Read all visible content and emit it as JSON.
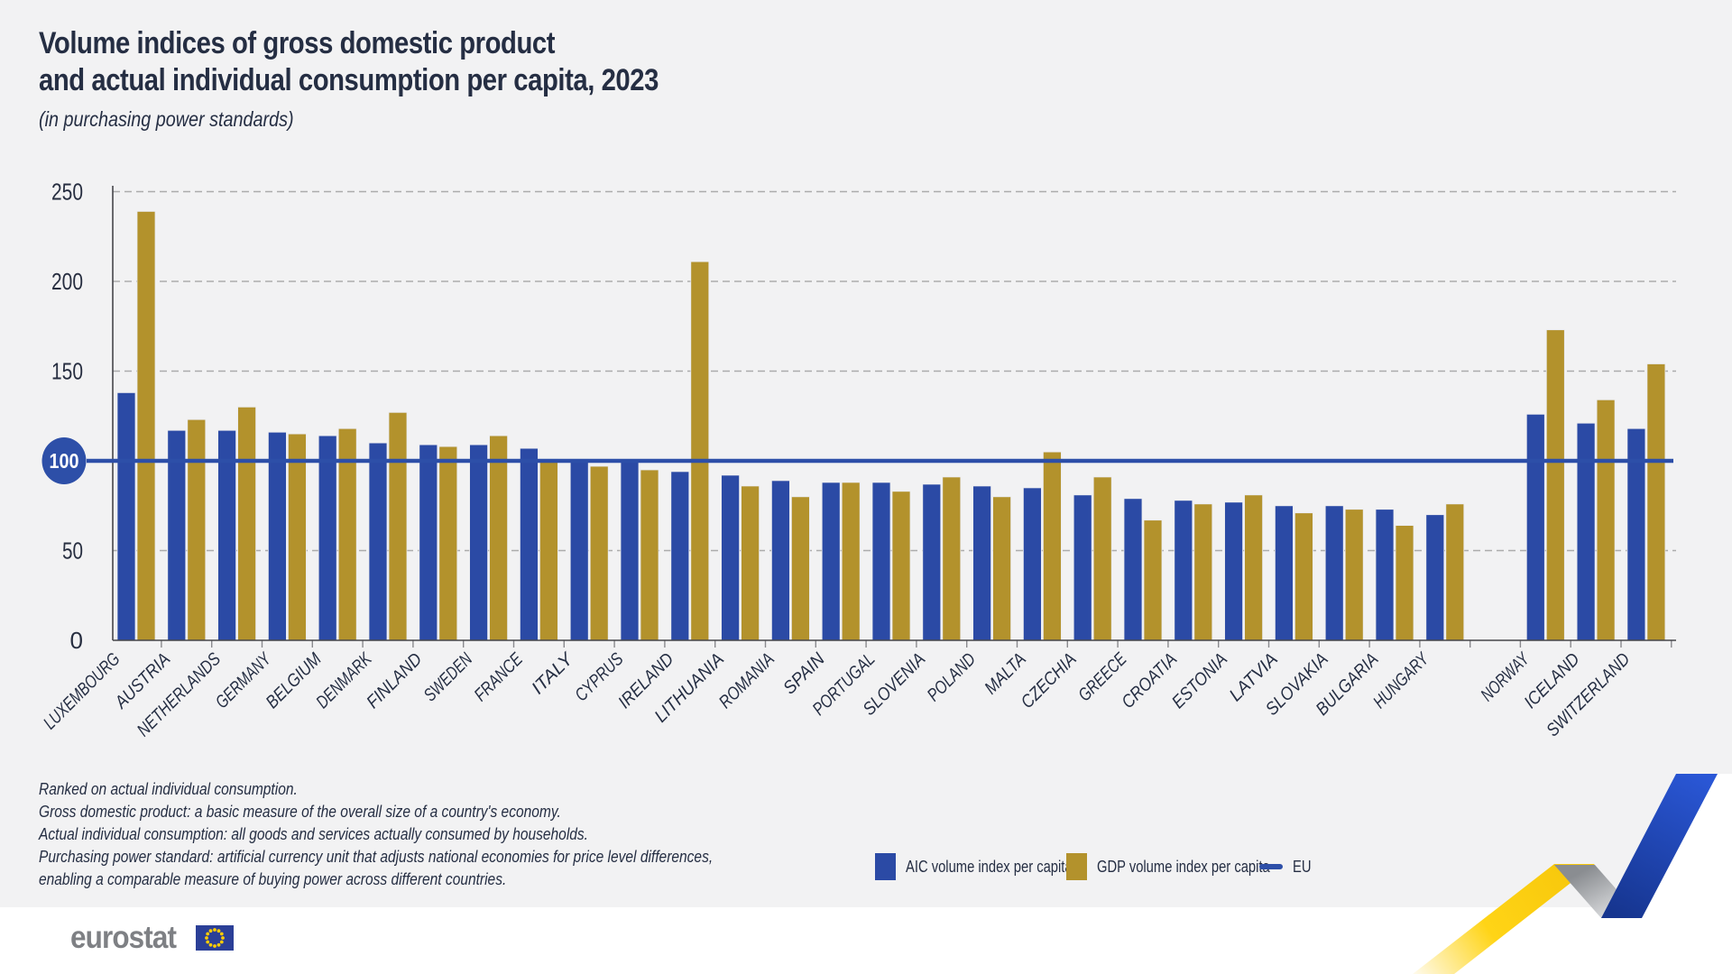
{
  "title": {
    "line1": "Volume indices of gross domestic product",
    "line2": "and actual individual consumption per capita, 2023",
    "subtitle": "(in purchasing power standards)"
  },
  "legend": {
    "items": [
      {
        "label": "AIC volume index per capita",
        "swatch": "square",
        "color": "#2B4AA5"
      },
      {
        "label": "GDP volume index per capita",
        "swatch": "square",
        "color": "#B3922C"
      },
      {
        "label": "EU",
        "swatch": "line",
        "color": "#2D4FA8"
      }
    ]
  },
  "footnotes": {
    "lines": [
      "Ranked on actual individual consumption.",
      "Gross domestic product: a basic measure of the overall size of a country's economy.",
      "Actual individual consumption: all goods and services actually consumed by households.",
      "Purchasing power standard: artificial currency unit that adjusts national economies for price level differences,",
      "enabling a comparable measure of buying power across different countries."
    ]
  },
  "logo": {
    "text": "eurostat"
  },
  "colors": {
    "background": "#F2F2F3",
    "aic_bar": "#2B4AA5",
    "gdp_bar": "#B3922C",
    "eu_line": "#2D4FA8",
    "text_dark": "#252E43",
    "gridline": "#ACACAC",
    "logo_gray": "#7E8084",
    "ribbon_yellow": "#FFD416",
    "ribbon_blue": "#2350C4"
  },
  "chart_data": {
    "type": "bar",
    "title": "Volume indices of gross domestic product and actual individual consumption per capita, 2023",
    "subtitle": "(in purchasing power standards)",
    "xlabel": "",
    "ylabel": "",
    "ylim": [
      0,
      250
    ],
    "yticks": [
      0,
      50,
      100,
      150,
      200,
      250
    ],
    "highlighted_tick": 100,
    "eu_reference_line": 100,
    "grid": "horizontal-dashed",
    "legend_position": "bottom",
    "ranking_note": "Ranked on actual individual consumption.",
    "categories": [
      "LUXEMBOURG",
      "AUSTRIA",
      "NETHERLANDS",
      "GERMANY",
      "BELGIUM",
      "DENMARK",
      "FINLAND",
      "SWEDEN",
      "FRANCE",
      "ITALY",
      "CYPRUS",
      "IRELAND",
      "LITHUANIA",
      "ROMANIA",
      "SPAIN",
      "PORTUGAL",
      "SLOVENIA",
      "POLAND",
      "MALTA",
      "CZECHIA",
      "GREECE",
      "CROATIA",
      "ESTONIA",
      "LATVIA",
      "SLOVAKIA",
      "BULGARIA",
      "HUNGARY",
      "NORWAY",
      "ICELAND",
      "SWITZERLAND"
    ],
    "efta_group": [
      "NORWAY",
      "ICELAND",
      "SWITZERLAND"
    ],
    "efta_start": 27,
    "series": [
      {
        "name": "AIC volume index per capita",
        "color": "#2B4AA5",
        "values": [
          138,
          117,
          117,
          116,
          114,
          110,
          109,
          109,
          107,
          101,
          100,
          94,
          92,
          89,
          88,
          88,
          87,
          86,
          85,
          81,
          79,
          78,
          77,
          75,
          75,
          73,
          70,
          126,
          121,
          118
        ]
      },
      {
        "name": "GDP volume index per capita",
        "color": "#B3922C",
        "values": [
          239,
          123,
          130,
          115,
          118,
          127,
          108,
          114,
          101,
          97,
          95,
          211,
          86,
          80,
          88,
          83,
          91,
          80,
          105,
          91,
          67,
          76,
          81,
          71,
          73,
          64,
          76,
          173,
          134,
          154
        ]
      }
    ]
  }
}
